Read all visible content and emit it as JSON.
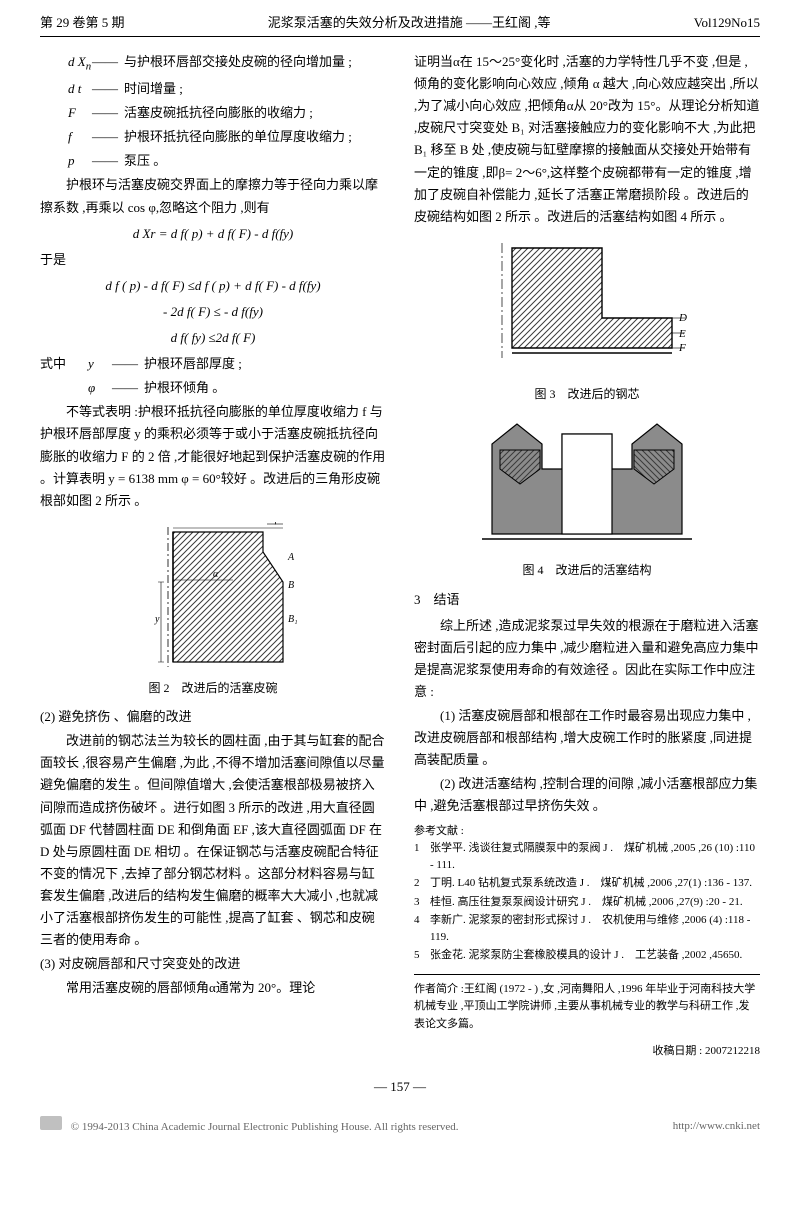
{
  "header": {
    "left": "第 29 卷第 5 期",
    "center": "泥浆泵活塞的失效分析及改进措施 ——王红阁 ,等",
    "right": "Vol129No15"
  },
  "left_col": {
    "defs1": [
      {
        "sym": "d X",
        "sub": "n",
        "text": "与护根环唇部交接处皮碗的径向增加量 ;"
      },
      {
        "sym": "d t",
        "sub": "",
        "text": "时间增量 ;"
      },
      {
        "sym": "F",
        "sub": "",
        "text": "活塞皮碗抵抗径向膨胀的收缩力 ;"
      },
      {
        "sym": "f",
        "sub": "",
        "text": "护根环抵抗径向膨胀的单位厚度收缩力 ;"
      },
      {
        "sym": "p",
        "sub": "",
        "text": "泵压 。"
      }
    ],
    "p1": "护根环与活塞皮碗交界面上的摩擦力等于径向力乘以摩擦系数 ,再乘以 cos φ,忽略这个阻力 ,则有",
    "eq1": "d Xr = d f( p)  +  d f( F)  -  d f(fy)",
    "p2": "于是",
    "eq2a": "d f ( p)  -  d f( F)  ≤d f ( p)  +  d f( F)  -  d f(fy)",
    "eq2b": "- 2d f( F)  ≤ -  d f(fy)",
    "eq2c": "d f( fy)  ≤2d f( F)",
    "p3": "式中",
    "defs2": [
      {
        "sym": "y",
        "text": "护根环唇部厚度 ;"
      },
      {
        "sym": "φ",
        "text": "护根环倾角 。"
      }
    ],
    "p4": "不等式表明 :护根环抵抗径向膨胀的单位厚度收缩力 f 与护根环唇部厚度 y 的乘积必须等于或小于活塞皮碗抵抗径向膨胀的收缩力 F 的 2 倍 ,才能很好地起到保护活塞皮碗的作用 。计算表明 y = 6138  mm  φ = 60°较好 。改进后的三角形皮碗根部如图 2 所示 。",
    "fig2_cap": "图 2　改进后的活塞皮碗",
    "h2": "(2) 避免挤伤 、偏磨的改进",
    "p5": "改进前的钢芯法兰为较长的圆柱面 ,由于其与缸套的配合面较长 ,很容易产生偏磨 ,为此 ,不得不增加活塞间隙值以尽量避免偏磨的发生 。但间隙值增大 ,会使活塞根部极易被挤入间隙而造成挤伤破坏 。进行如图 3 所示的改进 ,用大直径圆弧面 DF 代替圆柱面 DE 和倒角面 EF ,该大直径圆弧面 DF 在 D 处与原圆柱面 DE 相切 。在保证钢芯与活塞皮碗配合特征不变的情况下 ,去掉了部分钢芯材料 。这部分材料容易与缸套发生偏磨 ,改进后的结构发生偏磨的概率大大减小 ,也就减小了活塞根部挤伤发生的可能性 ,提高了缸套 、钢芯和皮碗三者的使用寿命 。",
    "h3": "(3) 对皮碗唇部和尺寸突变处的改进",
    "p6": "常用活塞皮碗的唇部倾角α通常为 20°。理论"
  },
  "right_col": {
    "p1": "证明当α在 15～25°变化时 ,活塞的力学特性几乎不变 ,但是 ,倾角的变化影响向心效应 ,倾角 α 越大 ,向心效应越突出 ,所以 ,为了减小向心效应 ,把倾角α从 20°改为 15°。从理论分析知道 ,皮碗尺寸突变处 B₁ 对活塞接触应力的变化影响不大 ,为此把 B₁ 移至 B 处 ,使皮碗与缸壁摩擦的接触面从交接处开始带有一定的锥度 ,即β= 2～6°,这样整个皮碗都带有一定的锥度 ,增加了皮碗自补偿能力 ,延长了活塞正常磨损阶段 。改进后的皮碗结构如图 2 所示 。改进后的活塞结构如图 4 所示 。",
    "fig3_cap": "图 3　改进后的钢芯",
    "fig4_cap": "图 4　改进后的活塞结构",
    "sec3": "3　结语",
    "p2": "综上所述 ,造成泥浆泵过早失效的根源在于磨粒进入活塞密封面后引起的应力集中 ,减少磨粒进入量和避免高应力集中是提高泥浆泵使用寿命的有效途径 。因此在实际工作中应注意 :",
    "p3": "(1) 活塞皮碗唇部和根部在工作时最容易出现应力集中 ,改进皮碗唇部和根部结构 ,增大皮碗工作时的胀紧度 ,同进提高装配质量 。",
    "p4": "(2) 改进活塞结构 ,控制合理的间隙 ,减小活塞根部应力集中 ,避免活塞根部过早挤伤失效 。",
    "refs_h": "参考文献 :",
    "refs": [
      "张学平. 浅谈往复式隔膜泵中的泵阀 J .　煤矿机械 ,2005 ,26 (10) :110 - 111.",
      "丁明. L40 钻机复式泵系统改造 J .　煤矿机械 ,2006 ,27(1) :136 - 137.",
      "桂恒. 高压往复泵泵阀设计研究 J .　煤矿机械 ,2006 ,27(9) :20 - 21.",
      "李新广. 泥浆泵的密封形式探讨 J .　农机使用与维修 ,2006 (4) :118 - 119.",
      "张金花. 泥浆泵防尘套橡胶模具的设计 J .　工艺装备 ,2002 ,45650."
    ],
    "author": "作者简介 :王红阁 (1972 - )  ,女 ,河南舞阳人 ,1996 年毕业于河南科技大学机械专业 ,平顶山工学院讲师 ,主要从事机械专业的教学与科研工作 ,发表论文多篇。",
    "recv": "收稿日期 : 2007212218"
  },
  "pageno": "—  157  —",
  "footer": {
    "left": "© 1994-2013 China Academic Journal Electronic Publishing House. All rights reserved.",
    "right": "http://www.cnki.net"
  },
  "colors": {
    "hatch": "#3a3a3a",
    "fill_grey": "#8b8b8b",
    "line": "#000000"
  }
}
